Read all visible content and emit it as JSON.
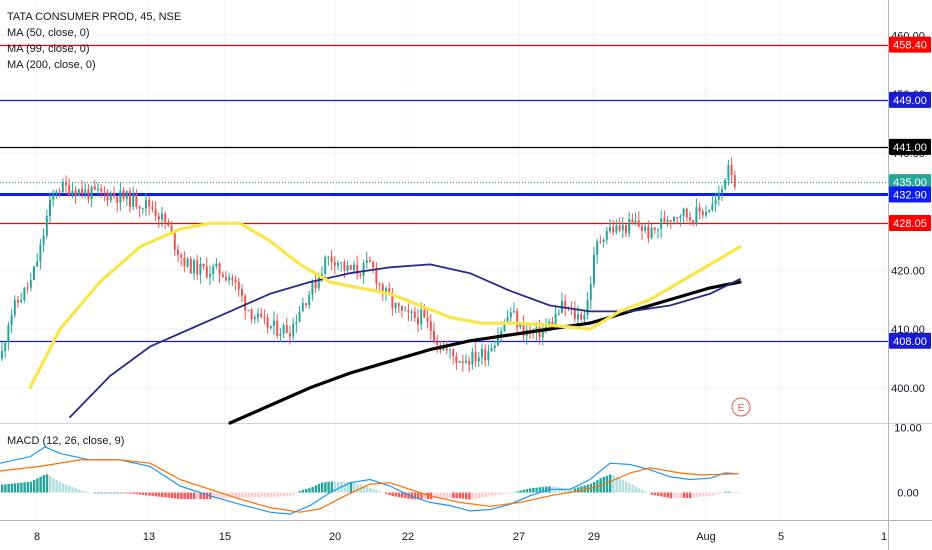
{
  "legend": {
    "symbol": "TATA CONSUMER PROD, 45, NSE",
    "ma50": "MA (50, close, 0)",
    "ma99": "MA (99, close, 0)",
    "ma200": "MA (200, close, 0)",
    "macd": "MACD (12, 26, close, 9)"
  },
  "earnings_marker": "E",
  "colors": {
    "up": "#26a69a",
    "down": "#ef5350",
    "ma50": "#fbe64a",
    "ma99": "#2a2a8a",
    "ma200": "#000000",
    "red_line": "#ff0000",
    "blue_line": "#1a1ad0",
    "blue_thick": "#0d1cf0",
    "macd": "#2196f3",
    "signal": "#ff6d00"
  },
  "chart_data": [
    {
      "type": "candlestick",
      "title": "TATA CONSUMER PROD, 45, NSE",
      "y_ticks": [
        "400.00",
        "410.00",
        "420.00",
        "440.00",
        "450.00",
        "460.00"
      ],
      "ylim": [
        394,
        466
      ],
      "x_ticks": [
        "8",
        "13",
        "15",
        "20",
        "22",
        "27",
        "29",
        "Aug",
        "5",
        "1"
      ],
      "horizontal_levels": [
        {
          "label": "458.40",
          "value": 458.4,
          "color": "#ff0000"
        },
        {
          "label": "449.00",
          "value": 449.0,
          "color": "#1a1ad0"
        },
        {
          "label": "441.00",
          "value": 441.0,
          "color": "#000000"
        },
        {
          "label": "435.00",
          "value": 435.0,
          "color": "#26a69a"
        },
        {
          "label": "432.90",
          "value": 432.9,
          "color": "#0d1cf0"
        },
        {
          "label": "428.05",
          "value": 428.05,
          "color": "#ff0000"
        },
        {
          "label": "408.00",
          "value": 408.0,
          "color": "#1a1ad0"
        }
      ],
      "close_path": [
        [
          0,
          405
        ],
        [
          8,
          412
        ],
        [
          18,
          415
        ],
        [
          30,
          418
        ],
        [
          40,
          424
        ],
        [
          47,
          430
        ],
        [
          55,
          434
        ],
        [
          70,
          434
        ],
        [
          90,
          433
        ],
        [
          110,
          433
        ],
        [
          130,
          432
        ],
        [
          150,
          431
        ],
        [
          165,
          428
        ],
        [
          175,
          424
        ],
        [
          185,
          421
        ],
        [
          200,
          420
        ],
        [
          215,
          420
        ],
        [
          230,
          419
        ],
        [
          245,
          414
        ],
        [
          260,
          411
        ],
        [
          275,
          410
        ],
        [
          290,
          410
        ],
        [
          300,
          414
        ],
        [
          315,
          418
        ],
        [
          325,
          422
        ],
        [
          335,
          422
        ],
        [
          345,
          420
        ],
        [
          360,
          420
        ],
        [
          370,
          421
        ],
        [
          380,
          417
        ],
        [
          392,
          414
        ],
        [
          405,
          412
        ],
        [
          420,
          412
        ],
        [
          430,
          410
        ],
        [
          440,
          407
        ],
        [
          455,
          405
        ],
        [
          470,
          405
        ],
        [
          485,
          406
        ],
        [
          500,
          410
        ],
        [
          510,
          413
        ],
        [
          520,
          410
        ],
        [
          535,
          409
        ],
        [
          550,
          411
        ],
        [
          562,
          414
        ],
        [
          575,
          412
        ],
        [
          585,
          413
        ],
        [
          595,
          424
        ],
        [
          605,
          427
        ],
        [
          620,
          427
        ],
        [
          635,
          428
        ],
        [
          650,
          426
        ],
        [
          665,
          429
        ],
        [
          680,
          430
        ],
        [
          690,
          429
        ],
        [
          700,
          430
        ],
        [
          712,
          431
        ],
        [
          720,
          433
        ],
        [
          728,
          439
        ],
        [
          735,
          434
        ]
      ],
      "ma50": [
        [
          30,
          400
        ],
        [
          60,
          410
        ],
        [
          100,
          418
        ],
        [
          140,
          424
        ],
        [
          180,
          427
        ],
        [
          210,
          428
        ],
        [
          240,
          428
        ],
        [
          270,
          425
        ],
        [
          300,
          421
        ],
        [
          330,
          418
        ],
        [
          360,
          417
        ],
        [
          390,
          416
        ],
        [
          420,
          414
        ],
        [
          450,
          412
        ],
        [
          480,
          411
        ],
        [
          520,
          411
        ],
        [
          560,
          410.5
        ],
        [
          590,
          410
        ],
        [
          620,
          413
        ],
        [
          650,
          415
        ],
        [
          680,
          418
        ],
        [
          710,
          421
        ],
        [
          740,
          424
        ]
      ],
      "ma99": [
        [
          70,
          395
        ],
        [
          110,
          402
        ],
        [
          150,
          407
        ],
        [
          190,
          410
        ],
        [
          230,
          413
        ],
        [
          270,
          416
        ],
        [
          310,
          418
        ],
        [
          350,
          419.5
        ],
        [
          390,
          420.5
        ],
        [
          430,
          421
        ],
        [
          470,
          419.5
        ],
        [
          510,
          416.5
        ],
        [
          550,
          414
        ],
        [
          590,
          413
        ],
        [
          630,
          413
        ],
        [
          670,
          414
        ],
        [
          710,
          416
        ],
        [
          740,
          418.5
        ]
      ],
      "ma200": [
        [
          230,
          394
        ],
        [
          270,
          397
        ],
        [
          310,
          400
        ],
        [
          350,
          402.5
        ],
        [
          390,
          404.5
        ],
        [
          430,
          406.5
        ],
        [
          470,
          408
        ],
        [
          510,
          409
        ],
        [
          550,
          410
        ],
        [
          590,
          411
        ],
        [
          630,
          413
        ],
        [
          670,
          415
        ],
        [
          710,
          417
        ],
        [
          740,
          418
        ]
      ]
    },
    {
      "type": "macd",
      "title": "MACD (12, 26, close, 9)",
      "y_ticks": [
        "10.00",
        "0.00"
      ],
      "ylim": [
        -4.2,
        10.5
      ],
      "macd": [
        [
          0,
          4.5
        ],
        [
          30,
          5.5
        ],
        [
          45,
          7
        ],
        [
          60,
          6
        ],
        [
          90,
          5
        ],
        [
          120,
          5
        ],
        [
          150,
          4
        ],
        [
          180,
          1
        ],
        [
          210,
          -0.5
        ],
        [
          240,
          -1.8
        ],
        [
          270,
          -3
        ],
        [
          290,
          -3.3
        ],
        [
          310,
          -2
        ],
        [
          330,
          0
        ],
        [
          350,
          1.5
        ],
        [
          370,
          2
        ],
        [
          390,
          1
        ],
        [
          410,
          -0.5
        ],
        [
          430,
          -1.5
        ],
        [
          450,
          -2
        ],
        [
          470,
          -2.8
        ],
        [
          490,
          -2.6
        ],
        [
          510,
          -1.8
        ],
        [
          530,
          -0.5
        ],
        [
          550,
          0.5
        ],
        [
          570,
          0.5
        ],
        [
          590,
          2
        ],
        [
          610,
          4.5
        ],
        [
          630,
          4.3
        ],
        [
          650,
          3.5
        ],
        [
          670,
          2.4
        ],
        [
          690,
          2
        ],
        [
          710,
          2.2
        ],
        [
          725,
          3
        ],
        [
          738,
          2.9
        ]
      ],
      "signal": [
        [
          0,
          3.3
        ],
        [
          40,
          4
        ],
        [
          80,
          5
        ],
        [
          120,
          5
        ],
        [
          150,
          4.5
        ],
        [
          180,
          2
        ],
        [
          210,
          0.5
        ],
        [
          240,
          -1
        ],
        [
          270,
          -2.3
        ],
        [
          300,
          -3
        ],
        [
          320,
          -2.5
        ],
        [
          345,
          -0.5
        ],
        [
          370,
          1.3
        ],
        [
          390,
          1.5
        ],
        [
          410,
          0.5
        ],
        [
          430,
          -0.5
        ],
        [
          460,
          -1.5
        ],
        [
          490,
          -2.1
        ],
        [
          520,
          -1.5
        ],
        [
          550,
          -0.5
        ],
        [
          580,
          0.3
        ],
        [
          600,
          1
        ],
        [
          630,
          3
        ],
        [
          650,
          3.8
        ],
        [
          680,
          3
        ],
        [
          700,
          2.7
        ],
        [
          720,
          2.8
        ],
        [
          738,
          2.9
        ]
      ]
    }
  ]
}
